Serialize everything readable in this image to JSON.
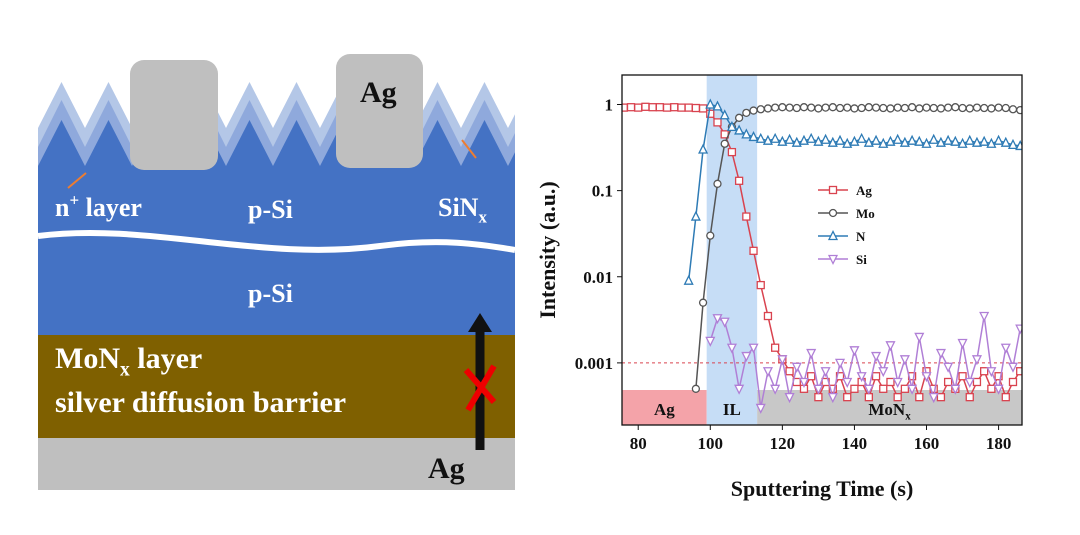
{
  "diagram": {
    "labels": [
      {
        "text": "Ag"
      },
      {
        "text": "n",
        "sup": "+",
        "tail": " layer"
      },
      {
        "text": "p-Si"
      },
      {
        "text": "SiN",
        "sub": "x"
      },
      {
        "text": "p-Si"
      },
      {
        "text": "MoN",
        "sub": "x",
        "tail": " layer"
      },
      {
        "text": "silver diffusion barrier"
      },
      {
        "text": "Ag"
      }
    ]
  },
  "chart_data": {
    "type": "line",
    "xlabel": "Sputtering Time (s)",
    "ylabel": "Intensity (a.u.)",
    "xlim": [
      75.5,
      186.5
    ],
    "xticks": [
      80,
      100,
      120,
      140,
      160,
      180
    ],
    "ylim": [
      0.00019,
      2.2
    ],
    "yticks": [
      0.001,
      0.01,
      0.1,
      1
    ],
    "log_y": true,
    "ref_line": 0.001,
    "ref_color": "#d9434f",
    "regions": [
      {
        "label": "Ag",
        "start": 75.5,
        "end": 99,
        "color": "#f4a3a9"
      },
      {
        "label": "IL",
        "start": 99,
        "end": 113,
        "color": "#c6ddf6",
        "full": true
      },
      {
        "label": "MoN",
        "sub": "x",
        "start": 113,
        "end": 186.5,
        "color": "#c8c8c8"
      }
    ],
    "x": [
      76,
      78,
      80,
      82,
      84,
      86,
      88,
      90,
      92,
      94,
      96,
      98,
      100,
      102,
      104,
      106,
      108,
      110,
      112,
      114,
      116,
      118,
      120,
      122,
      124,
      126,
      128,
      130,
      132,
      134,
      136,
      138,
      140,
      142,
      144,
      146,
      148,
      150,
      152,
      154,
      156,
      158,
      160,
      162,
      164,
      166,
      168,
      170,
      172,
      174,
      176,
      178,
      180,
      182,
      184,
      186
    ],
    "series": [
      {
        "name": "Ag",
        "color": "#d9434f",
        "marker": "square",
        "values": [
          0.92,
          0.93,
          0.92,
          0.94,
          0.93,
          0.93,
          0.92,
          0.93,
          0.92,
          0.92,
          0.91,
          0.9,
          0.78,
          0.62,
          0.45,
          0.28,
          0.13,
          0.05,
          0.02,
          0.008,
          0.0035,
          0.0015,
          0.0011,
          0.0008,
          0.0006,
          0.0005,
          0.0007,
          0.0004,
          0.0006,
          0.0005,
          0.0007,
          0.0004,
          0.0005,
          0.0006,
          0.0004,
          0.0007,
          0.0005,
          0.0006,
          0.0004,
          0.0005,
          0.0007,
          0.0004,
          0.0008,
          0.0005,
          0.0004,
          0.0006,
          0.0005,
          0.0007,
          0.0004,
          0.0006,
          0.0008,
          0.0005,
          0.0007,
          0.0004,
          0.0006,
          0.0008
        ]
      },
      {
        "name": "Mo",
        "color": "#555555",
        "marker": "circle",
        "values": [
          null,
          null,
          null,
          null,
          null,
          null,
          null,
          null,
          null,
          null,
          0.0005,
          0.005,
          0.03,
          0.12,
          0.35,
          0.55,
          0.7,
          0.8,
          0.85,
          0.88,
          0.9,
          0.92,
          0.93,
          0.92,
          0.91,
          0.93,
          0.92,
          0.9,
          0.92,
          0.93,
          0.91,
          0.92,
          0.9,
          0.91,
          0.93,
          0.92,
          0.91,
          0.9,
          0.92,
          0.91,
          0.93,
          0.9,
          0.92,
          0.91,
          0.9,
          0.92,
          0.93,
          0.91,
          0.9,
          0.92,
          0.91,
          0.9,
          0.92,
          0.91,
          0.88,
          0.86
        ]
      },
      {
        "name": "N",
        "color": "#2e7bb5",
        "marker": "triangle-up",
        "values": [
          null,
          null,
          null,
          null,
          null,
          null,
          null,
          null,
          null,
          0.009,
          0.05,
          0.3,
          1.0,
          0.95,
          0.75,
          0.55,
          0.5,
          0.45,
          0.42,
          0.4,
          0.38,
          0.4,
          0.37,
          0.39,
          0.36,
          0.38,
          0.4,
          0.37,
          0.39,
          0.36,
          0.38,
          0.35,
          0.37,
          0.4,
          0.36,
          0.38,
          0.35,
          0.37,
          0.39,
          0.36,
          0.38,
          0.37,
          0.35,
          0.39,
          0.36,
          0.38,
          0.37,
          0.35,
          0.38,
          0.36,
          0.37,
          0.35,
          0.38,
          0.36,
          0.34,
          0.33
        ]
      },
      {
        "name": "Si",
        "color": "#b07fd6",
        "marker": "triangle-down",
        "values": [
          null,
          null,
          null,
          null,
          null,
          null,
          null,
          null,
          null,
          null,
          null,
          null,
          0.0018,
          0.0033,
          0.003,
          0.0015,
          0.0005,
          0.0012,
          0.0015,
          0.0003,
          0.0008,
          0.0005,
          0.0011,
          0.0004,
          0.0009,
          0.0006,
          0.0013,
          0.0005,
          0.0008,
          0.0004,
          0.001,
          0.0006,
          0.0014,
          0.0007,
          0.0005,
          0.0012,
          0.0008,
          0.0016,
          0.0006,
          0.0011,
          0.0005,
          0.002,
          0.0007,
          0.0004,
          0.0013,
          0.0009,
          0.0005,
          0.0017,
          0.0006,
          0.0011,
          0.0035,
          0.0008,
          0.0005,
          0.0015,
          0.0009,
          0.0025
        ]
      }
    ]
  }
}
